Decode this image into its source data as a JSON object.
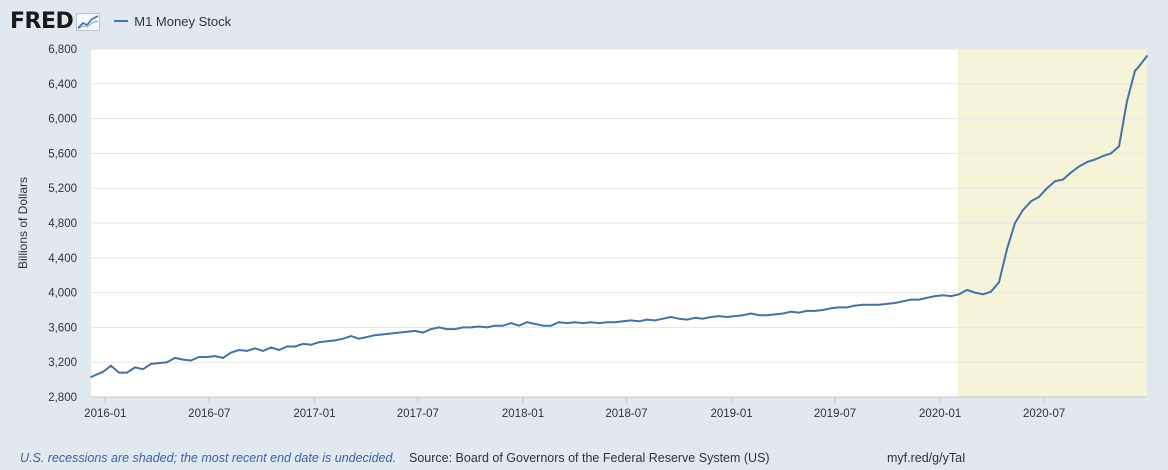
{
  "brand": {
    "logo_text": "FRED",
    "logo_icon": "trend-chart-icon"
  },
  "colors": {
    "series": "#4572a7",
    "recession": "#f5f3d8",
    "plot_bg": "#ffffff",
    "page_bg": "#e1e9f0",
    "grid": "#e6e6e6"
  },
  "footer": {
    "note": "U.S. recessions are shaded; the most recent end date is undecided.",
    "source": "Source: Board of Governors of the Federal Reserve System (US)",
    "link": "myf.red/g/yTaI"
  },
  "chart_data": {
    "type": "line",
    "title": "",
    "xlabel": "",
    "ylabel": "Billions of Dollars",
    "ylim": [
      2800,
      6800
    ],
    "yticks": [
      2800,
      3200,
      3600,
      4000,
      4400,
      4800,
      5200,
      5600,
      6000,
      6400,
      6800
    ],
    "ytick_labels": [
      "2,800",
      "3,200",
      "3,600",
      "4,000",
      "4,400",
      "4,800",
      "5,200",
      "5,600",
      "6,000",
      "6,400",
      "6,800"
    ],
    "xlim": [
      "2015-12-07",
      "2020-12-28"
    ],
    "xticks": [
      "2016-01",
      "2016-07",
      "2017-01",
      "2017-07",
      "2018-01",
      "2018-07",
      "2019-01",
      "2019-07",
      "2020-01",
      "2020-07"
    ],
    "grid": "horizontal",
    "legend": "top-left",
    "recession_shading": [
      {
        "start": "2020-02",
        "end": "2020-12-28"
      }
    ],
    "series": [
      {
        "name": "M1 Money Stock",
        "x": [
          "2015-12-07",
          "2015-12-28",
          "2016-01-11",
          "2016-01-25",
          "2016-02-08",
          "2016-02-22",
          "2016-03-07",
          "2016-03-21",
          "2016-04-04",
          "2016-04-18",
          "2016-05-02",
          "2016-05-16",
          "2016-05-30",
          "2016-06-13",
          "2016-06-27",
          "2016-07-11",
          "2016-07-25",
          "2016-08-08",
          "2016-08-22",
          "2016-09-05",
          "2016-09-19",
          "2016-10-03",
          "2016-10-17",
          "2016-10-31",
          "2016-11-14",
          "2016-11-28",
          "2016-12-12",
          "2016-12-26",
          "2017-01-09",
          "2017-01-23",
          "2017-02-06",
          "2017-02-20",
          "2017-03-06",
          "2017-03-20",
          "2017-04-03",
          "2017-04-17",
          "2017-05-01",
          "2017-05-15",
          "2017-05-29",
          "2017-06-12",
          "2017-06-26",
          "2017-07-10",
          "2017-07-24",
          "2017-08-07",
          "2017-08-21",
          "2017-09-04",
          "2017-09-18",
          "2017-10-02",
          "2017-10-16",
          "2017-10-30",
          "2017-11-13",
          "2017-11-27",
          "2017-12-11",
          "2017-12-25",
          "2018-01-08",
          "2018-01-22",
          "2018-02-05",
          "2018-02-19",
          "2018-03-05",
          "2018-03-19",
          "2018-04-02",
          "2018-04-16",
          "2018-04-30",
          "2018-05-14",
          "2018-05-28",
          "2018-06-11",
          "2018-06-25",
          "2018-07-09",
          "2018-07-23",
          "2018-08-06",
          "2018-08-20",
          "2018-09-03",
          "2018-09-17",
          "2018-10-01",
          "2018-10-15",
          "2018-10-29",
          "2018-11-12",
          "2018-11-26",
          "2018-12-10",
          "2018-12-24",
          "2019-01-07",
          "2019-01-21",
          "2019-02-04",
          "2019-02-18",
          "2019-03-04",
          "2019-03-18",
          "2019-04-01",
          "2019-04-15",
          "2019-04-29",
          "2019-05-13",
          "2019-05-27",
          "2019-06-10",
          "2019-06-24",
          "2019-07-08",
          "2019-07-22",
          "2019-08-05",
          "2019-08-19",
          "2019-09-02",
          "2019-09-16",
          "2019-09-30",
          "2019-10-14",
          "2019-10-28",
          "2019-11-11",
          "2019-11-25",
          "2019-12-09",
          "2019-12-23",
          "2020-01-06",
          "2020-01-20",
          "2020-02-03",
          "2020-02-17",
          "2020-03-02",
          "2020-03-16",
          "2020-03-30",
          "2020-04-13",
          "2020-04-27",
          "2020-05-11",
          "2020-05-25",
          "2020-06-08",
          "2020-06-22",
          "2020-07-06",
          "2020-07-20",
          "2020-08-03",
          "2020-08-17",
          "2020-08-31",
          "2020-09-14",
          "2020-09-28",
          "2020-10-12",
          "2020-10-26",
          "2020-11-09",
          "2020-11-23",
          "2020-12-07",
          "2020-12-14",
          "2020-12-28"
        ],
        "values": [
          3030,
          3090,
          3160,
          3080,
          3080,
          3140,
          3120,
          3180,
          3190,
          3200,
          3250,
          3230,
          3220,
          3260,
          3260,
          3270,
          3250,
          3310,
          3340,
          3330,
          3360,
          3330,
          3370,
          3340,
          3380,
          3380,
          3410,
          3400,
          3430,
          3440,
          3450,
          3470,
          3500,
          3470,
          3490,
          3510,
          3520,
          3530,
          3540,
          3550,
          3560,
          3540,
          3580,
          3600,
          3580,
          3580,
          3600,
          3600,
          3610,
          3600,
          3620,
          3620,
          3650,
          3620,
          3660,
          3640,
          3620,
          3620,
          3660,
          3650,
          3660,
          3650,
          3660,
          3650,
          3660,
          3660,
          3670,
          3680,
          3670,
          3690,
          3680,
          3700,
          3720,
          3700,
          3690,
          3710,
          3700,
          3720,
          3730,
          3720,
          3730,
          3740,
          3760,
          3740,
          3740,
          3750,
          3760,
          3780,
          3770,
          3790,
          3790,
          3800,
          3820,
          3830,
          3830,
          3850,
          3860,
          3860,
          3860,
          3870,
          3880,
          3900,
          3920,
          3920,
          3940,
          3960,
          3970,
          3960,
          3980,
          4030,
          4000,
          3980,
          4010,
          4120,
          4500,
          4800,
          4950,
          5050,
          5100,
          5200,
          5280,
          5300,
          5380,
          5450,
          5500,
          5530,
          5570,
          5600,
          5680,
          6200,
          6550,
          6600,
          6720
        ]
      }
    ]
  }
}
